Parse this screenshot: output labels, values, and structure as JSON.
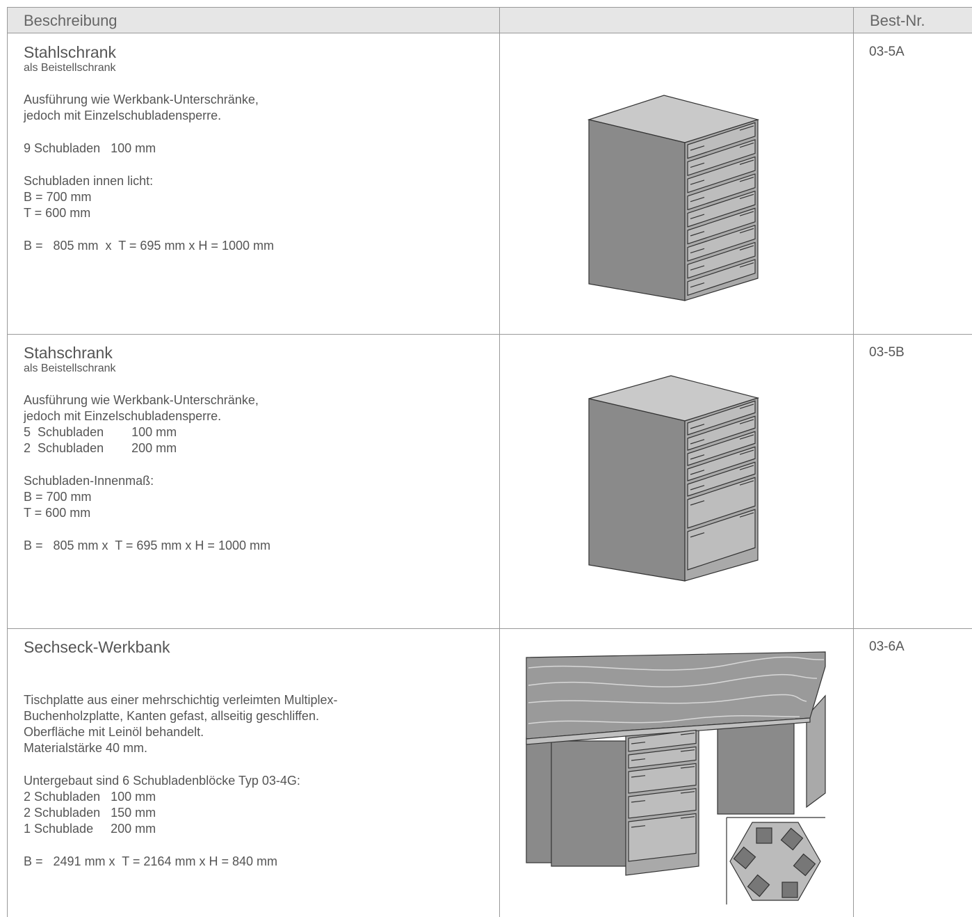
{
  "table": {
    "header": {
      "description": "Beschreibung",
      "order_no": "Best-Nr."
    },
    "rows": [
      {
        "title": "Stahlschrank",
        "subtitle": "als Beistellschrank",
        "paragraphs": [
          [
            "Ausführung wie Werkbank-Unterschränke,",
            "jedoch mit Einzelschubladensperre."
          ],
          [
            "9 Schubladen   100 mm"
          ],
          [
            "Schubladen innen licht:",
            "B = 700 mm",
            "T = 600 mm"
          ],
          [
            "B =   805 mm  x  T = 695 mm x H = 1000 mm"
          ]
        ],
        "order_no": "03-5A"
      },
      {
        "title": "Stahschrank",
        "subtitle": "als Beistellschrank",
        "paragraphs": [
          [
            "Ausführung wie Werkbank-Unterschränke,",
            "jedoch mit Einzelschubladensperre.",
            "5  Schubladen        100 mm",
            "2  Schubladen        200 mm"
          ],
          [
            "Schubladen-Innenmaß:",
            "B = 700 mm",
            "T = 600 mm"
          ],
          [
            "B =   805 mm x  T = 695 mm x H = 1000 mm"
          ]
        ],
        "order_no": "03-5B"
      },
      {
        "title": "Sechseck-Werkbank",
        "paragraphs": [
          [
            "Tischplatte aus einer mehrschichtig verleimten Multiplex-",
            "Buchenholzplatte, Kanten gefast, allseitig geschliffen.",
            "Oberfläche mit Leinöl behandelt.",
            "Materialstärke 40 mm."
          ],
          [
            "Untergebaut sind 6 Schubladenblöcke Typ 03-4G:",
            "2 Schubladen   100 mm",
            "2 Schubladen   150 mm",
            "1 Schublade     200 mm"
          ],
          [
            "B =   2491 mm x  T = 2164 mm x H = 840 mm"
          ]
        ],
        "order_no": "03-6A"
      }
    ]
  }
}
